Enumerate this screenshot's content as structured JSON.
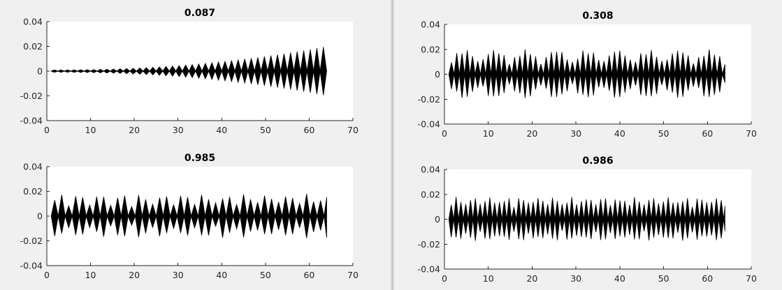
{
  "chart_data": [
    {
      "type": "line",
      "title": "0.087",
      "xlabel": "",
      "ylabel": "",
      "xlim": [
        0,
        70
      ],
      "ylim": [
        -0.04,
        0.04
      ],
      "xticks": [
        "0",
        "10",
        "20",
        "30",
        "40",
        "50",
        "60",
        "70"
      ],
      "yticks": [
        "0.04",
        "0.02",
        "0",
        "-0.02",
        "-0.04"
      ],
      "grid": false,
      "x": [
        1,
        64
      ],
      "envelope": {
        "pattern": "growing",
        "start_amplitude": 0.001,
        "end_amplitude": 0.02,
        "lobe_period": 1.5
      },
      "line_color": "#000000"
    },
    {
      "type": "line",
      "title": "0.308",
      "xlabel": "",
      "ylabel": "",
      "xlim": [
        0,
        70
      ],
      "ylim": [
        -0.04,
        0.04
      ],
      "xticks": [
        "0",
        "10",
        "20",
        "30",
        "40",
        "50",
        "60",
        "70"
      ],
      "yticks": [
        "0.04",
        "0.02",
        "0",
        "-0.02",
        "-0.04"
      ],
      "grid": false,
      "x": [
        1,
        64
      ],
      "envelope": {
        "pattern": "beating",
        "start_amplitude": 0.01,
        "end_amplitude": 0.02,
        "lobe_period": 1.2
      },
      "line_color": "#000000"
    },
    {
      "type": "line",
      "title": "0.985",
      "xlabel": "",
      "ylabel": "",
      "xlim": [
        0,
        70
      ],
      "ylim": [
        -0.04,
        0.04
      ],
      "xticks": [
        "0",
        "10",
        "20",
        "30",
        "40",
        "50",
        "60",
        "70"
      ],
      "yticks": [
        "0.04",
        "0.02",
        "0",
        "-0.02",
        "-0.04"
      ],
      "grid": false,
      "x": [
        1,
        64
      ],
      "envelope": {
        "pattern": "irregular",
        "start_amplitude": 0.018,
        "end_amplitude": 0.018,
        "lobe_period": 1.6
      },
      "line_color": "#000000"
    },
    {
      "type": "line",
      "title": "0.986",
      "xlabel": "",
      "ylabel": "",
      "xlim": [
        0,
        70
      ],
      "ylim": [
        -0.04,
        0.04
      ],
      "xticks": [
        "0",
        "10",
        "20",
        "30",
        "40",
        "50",
        "60",
        "70"
      ],
      "yticks": [
        "0.04",
        "0.02",
        "0",
        "-0.02",
        "-0.04"
      ],
      "grid": false,
      "x": [
        1,
        64
      ],
      "envelope": {
        "pattern": "dense",
        "start_amplitude": 0.018,
        "end_amplitude": 0.018,
        "lobe_period": 1.1
      },
      "line_color": "#000000"
    }
  ]
}
